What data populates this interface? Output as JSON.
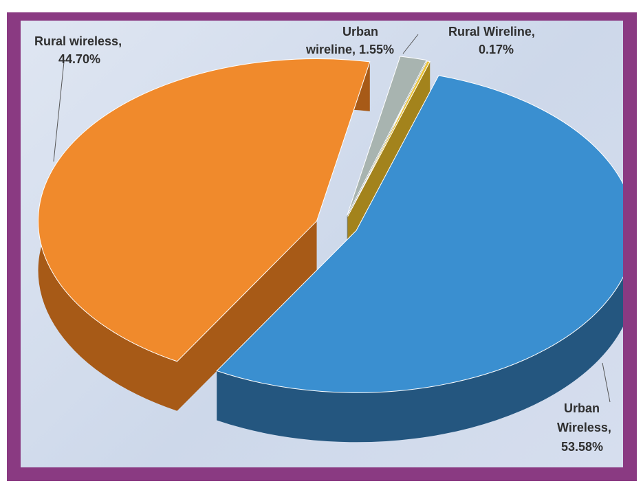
{
  "chart_data": {
    "type": "pie",
    "title": "",
    "legend": "none",
    "slices": [
      {
        "label_line1": "Urban",
        "label_line2": "Wireless,",
        "label_line3": "53.58%",
        "value": 53.58,
        "color": "#3a8fd0",
        "side_color": "#24567f"
      },
      {
        "label_line1": "Rural wireless,",
        "label_line2": "44.70%",
        "value": 44.7,
        "color": "#f08a2c",
        "side_color": "#a75a17"
      },
      {
        "label_line1": "Urban",
        "label_line2": "wireline, 1.55%",
        "value": 1.55,
        "color": "#a8b4b0",
        "side_color": "#6d7774"
      },
      {
        "label_line1": "Rural Wireline,",
        "label_line2": "0.17%",
        "value": 0.17,
        "color": "#e8c23a",
        "side_color": "#a3831c"
      }
    ]
  }
}
